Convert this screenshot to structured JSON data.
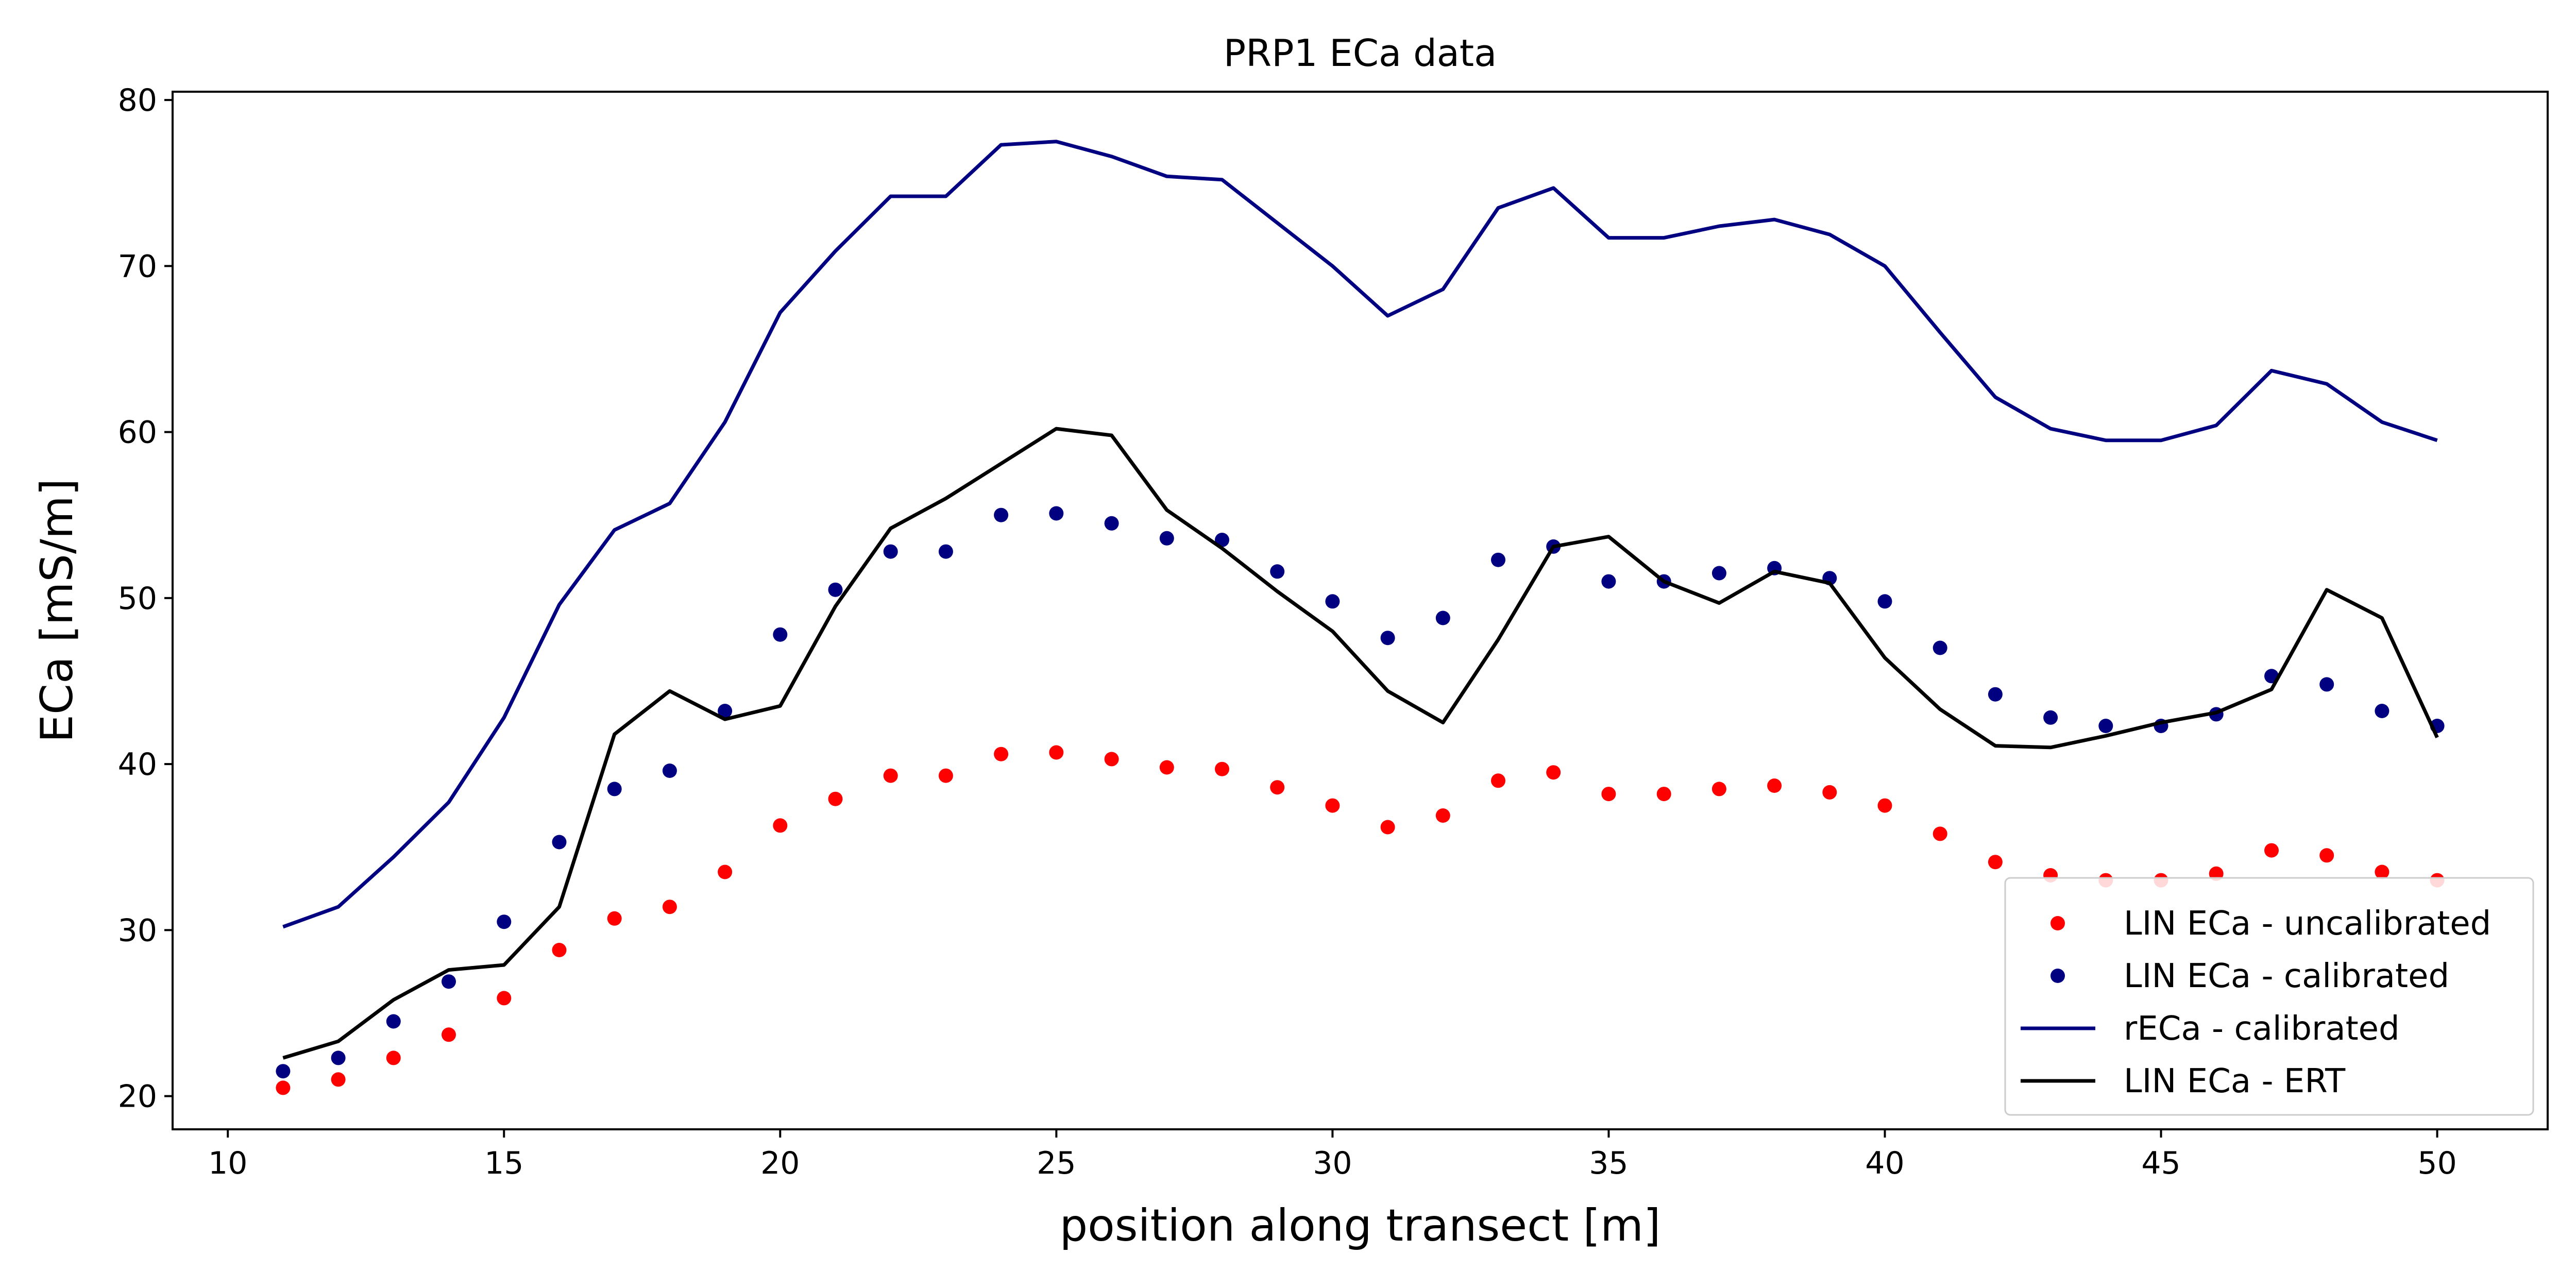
{
  "chart_data": {
    "type": "line",
    "title": "PRP1 ECa data",
    "xlabel": "position along transect [m]",
    "ylabel": "ECa [mS/m]",
    "xlim": [
      9,
      52
    ],
    "ylim": [
      18,
      80.5
    ],
    "xticks": [
      10,
      15,
      20,
      25,
      30,
      35,
      40,
      45,
      50
    ],
    "yticks": [
      20,
      30,
      40,
      50,
      60,
      70,
      80
    ],
    "grid": false,
    "legend_position": "lower-right",
    "x": [
      11,
      12,
      13,
      14,
      15,
      16,
      17,
      18,
      19,
      20,
      21,
      22,
      23,
      24,
      25,
      26,
      27,
      28,
      29,
      30,
      31,
      32,
      33,
      34,
      35,
      36,
      37,
      38,
      39,
      40,
      41,
      42,
      43,
      44,
      45,
      46,
      47,
      48,
      49,
      50
    ],
    "series": [
      {
        "name": "LIN ECa - uncalibrated",
        "style": "points",
        "color": "#ff0000",
        "values": [
          20.5,
          21.0,
          22.3,
          23.7,
          25.9,
          28.8,
          30.7,
          31.4,
          33.5,
          36.3,
          37.9,
          39.3,
          39.3,
          40.6,
          40.7,
          40.3,
          39.8,
          39.7,
          38.6,
          37.5,
          36.2,
          36.9,
          39.0,
          39.5,
          38.2,
          38.2,
          38.5,
          38.7,
          38.3,
          37.5,
          35.8,
          34.1,
          33.3,
          33.0,
          33.0,
          33.4,
          34.8,
          34.5,
          33.5,
          33.0
        ]
      },
      {
        "name": "LIN ECa - calibrated",
        "style": "points",
        "color": "#000080",
        "values": [
          21.5,
          22.3,
          24.5,
          26.9,
          30.5,
          35.3,
          38.5,
          39.6,
          43.2,
          47.8,
          50.5,
          52.8,
          52.8,
          55.0,
          55.1,
          54.5,
          53.6,
          53.5,
          51.6,
          49.8,
          47.6,
          48.8,
          52.3,
          53.1,
          51.0,
          51.0,
          51.5,
          51.8,
          51.2,
          49.8,
          47.0,
          44.2,
          42.8,
          42.3,
          42.3,
          43.0,
          45.3,
          44.8,
          43.2,
          42.3
        ]
      },
      {
        "name": "rECa - calibrated",
        "style": "line",
        "color": "#000080",
        "values": [
          30.2,
          31.4,
          34.4,
          37.7,
          42.8,
          49.6,
          54.1,
          55.7,
          60.6,
          67.2,
          70.9,
          74.2,
          74.2,
          77.3,
          77.5,
          76.6,
          75.4,
          75.2,
          72.6,
          70.0,
          67.0,
          68.6,
          73.5,
          74.7,
          71.7,
          71.7,
          72.4,
          72.8,
          71.9,
          70.0,
          66.0,
          62.1,
          60.2,
          59.5,
          59.5,
          60.4,
          63.7,
          62.9,
          60.6,
          59.5
        ]
      },
      {
        "name": "LIN ECa - ERT",
        "style": "line",
        "color": "#000000",
        "values": [
          22.3,
          23.3,
          25.8,
          27.6,
          27.9,
          31.4,
          41.8,
          44.4,
          42.7,
          43.5,
          49.5,
          54.2,
          56.0,
          58.1,
          60.2,
          59.8,
          55.3,
          53.0,
          50.4,
          48.0,
          44.4,
          42.5,
          47.5,
          53.1,
          53.7,
          51.0,
          49.7,
          51.6,
          50.9,
          46.4,
          43.3,
          41.1,
          41.0,
          41.7,
          42.5,
          43.1,
          44.5,
          50.5,
          48.8,
          41.6
        ]
      }
    ]
  }
}
